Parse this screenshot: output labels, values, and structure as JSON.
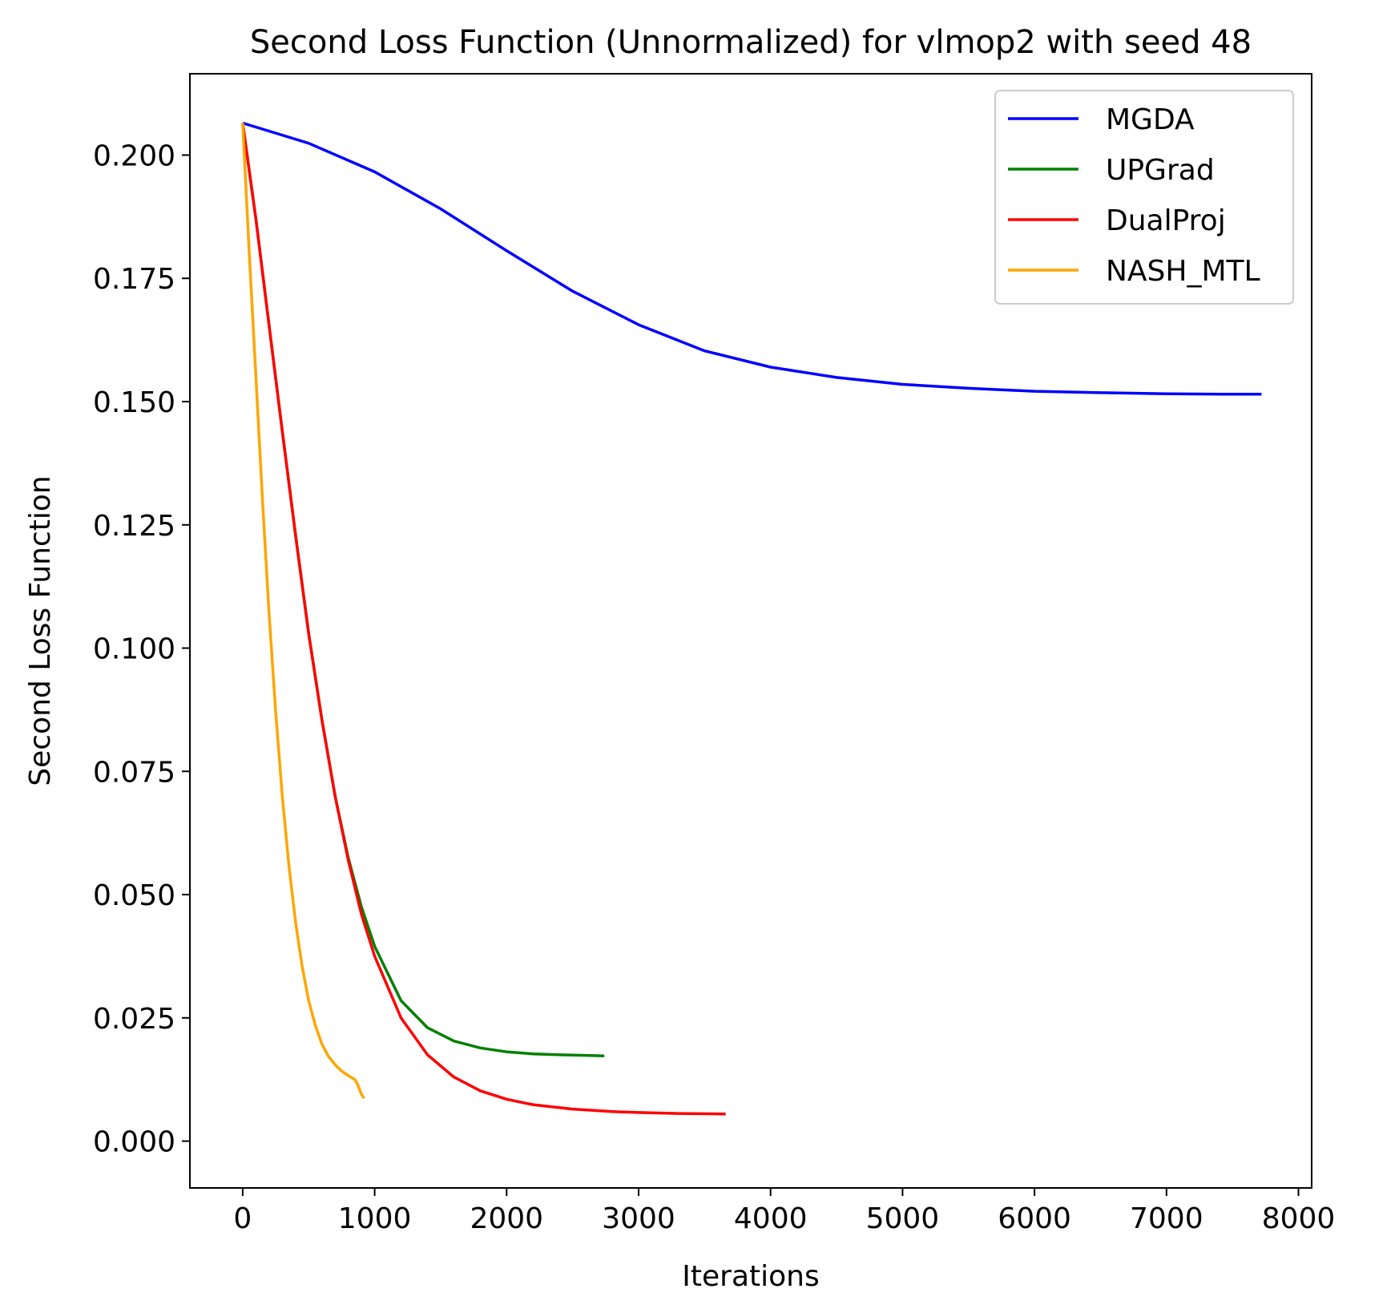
{
  "chart_data": {
    "type": "line",
    "title": "Second Loss Function (Unnormalized) for vlmop2 with seed 48",
    "xlabel": "Iterations",
    "ylabel": "Second Loss Function",
    "xlim": [
      -400,
      8100
    ],
    "ylim": [
      -0.0095,
      0.2165
    ],
    "xticks": [
      0,
      1000,
      2000,
      3000,
      4000,
      5000,
      6000,
      7000,
      8000
    ],
    "xtick_labels": [
      "0",
      "1000",
      "2000",
      "3000",
      "4000",
      "5000",
      "6000",
      "7000",
      "8000"
    ],
    "yticks": [
      0.0,
      0.025,
      0.05,
      0.075,
      0.1,
      0.125,
      0.15,
      0.175,
      0.2
    ],
    "ytick_labels": [
      "0.000",
      "0.025",
      "0.050",
      "0.075",
      "0.100",
      "0.125",
      "0.150",
      "0.175",
      "0.200"
    ],
    "grid": false,
    "legend_position": "top-right",
    "series": [
      {
        "name": "MGDA",
        "color": "#0000ff",
        "x": [
          0,
          500,
          1000,
          1500,
          2000,
          2500,
          3000,
          3500,
          4000,
          4500,
          5000,
          5500,
          6000,
          6500,
          7000,
          7500,
          7720
        ],
        "y": [
          0.2065,
          0.2024,
          0.1966,
          0.1891,
          0.1806,
          0.1724,
          0.1656,
          0.1603,
          0.157,
          0.1549,
          0.1535,
          0.1527,
          0.1521,
          0.1518,
          0.1516,
          0.1515,
          0.1515
        ]
      },
      {
        "name": "UPGrad",
        "color": "#008000",
        "x": [
          0,
          100,
          200,
          300,
          400,
          500,
          600,
          700,
          800,
          900,
          1000,
          1200,
          1400,
          1600,
          1800,
          2000,
          2200,
          2400,
          2600,
          2740
        ],
        "y": [
          0.2065,
          0.187,
          0.1655,
          0.144,
          0.123,
          0.103,
          0.0855,
          0.07,
          0.0575,
          0.0475,
          0.0395,
          0.0285,
          0.023,
          0.0203,
          0.0189,
          0.0181,
          0.0177,
          0.0175,
          0.0174,
          0.0173
        ]
      },
      {
        "name": "DualProj",
        "color": "#ff0000",
        "x": [
          0,
          100,
          200,
          300,
          400,
          500,
          600,
          700,
          800,
          900,
          1000,
          1200,
          1400,
          1600,
          1800,
          2000,
          2200,
          2500,
          2800,
          3000,
          3300,
          3660
        ],
        "y": [
          0.2065,
          0.187,
          0.1655,
          0.144,
          0.123,
          0.103,
          0.0855,
          0.07,
          0.057,
          0.046,
          0.0375,
          0.025,
          0.0175,
          0.013,
          0.0102,
          0.0085,
          0.0074,
          0.0065,
          0.006,
          0.0058,
          0.0056,
          0.0055
        ]
      },
      {
        "name": "NASH_MTL",
        "color": "#ffa500",
        "x": [
          0,
          50,
          100,
          150,
          200,
          250,
          300,
          350,
          400,
          450,
          500,
          550,
          600,
          650,
          700,
          750,
          800,
          850,
          870,
          900,
          920
        ],
        "y": [
          0.2065,
          0.18,
          0.155,
          0.13,
          0.107,
          0.087,
          0.07,
          0.056,
          0.0445,
          0.0355,
          0.0285,
          0.0235,
          0.0197,
          0.0172,
          0.0155,
          0.0142,
          0.0133,
          0.0125,
          0.0115,
          0.0095,
          0.0087
        ]
      }
    ]
  }
}
